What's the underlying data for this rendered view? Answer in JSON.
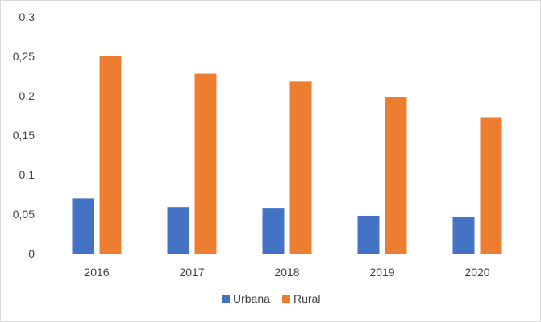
{
  "chart_data": {
    "type": "bar",
    "title": "",
    "xlabel": "",
    "ylabel": "",
    "categories": [
      "2016",
      "2017",
      "2018",
      "2019",
      "2020"
    ],
    "series": [
      {
        "name": "Urbana",
        "color": "#4472C4",
        "values": [
          0.07,
          0.059,
          0.057,
          0.048,
          0.047
        ]
      },
      {
        "name": "Rural",
        "color": "#ED7D31",
        "values": [
          0.251,
          0.228,
          0.218,
          0.198,
          0.173
        ]
      }
    ],
    "ylim": [
      0,
      0.3
    ],
    "yticks": [
      {
        "value": 0,
        "label": "0"
      },
      {
        "value": 0.05,
        "label": "0,05"
      },
      {
        "value": 0.1,
        "label": "0,1"
      },
      {
        "value": 0.15,
        "label": "0,15"
      },
      {
        "value": 0.2,
        "label": "0,2"
      },
      {
        "value": 0.25,
        "label": "0,25"
      },
      {
        "value": 0.3,
        "label": "0,3"
      }
    ],
    "grid": false,
    "legend": "bottom",
    "axis_color": "#d9d9d9"
  }
}
